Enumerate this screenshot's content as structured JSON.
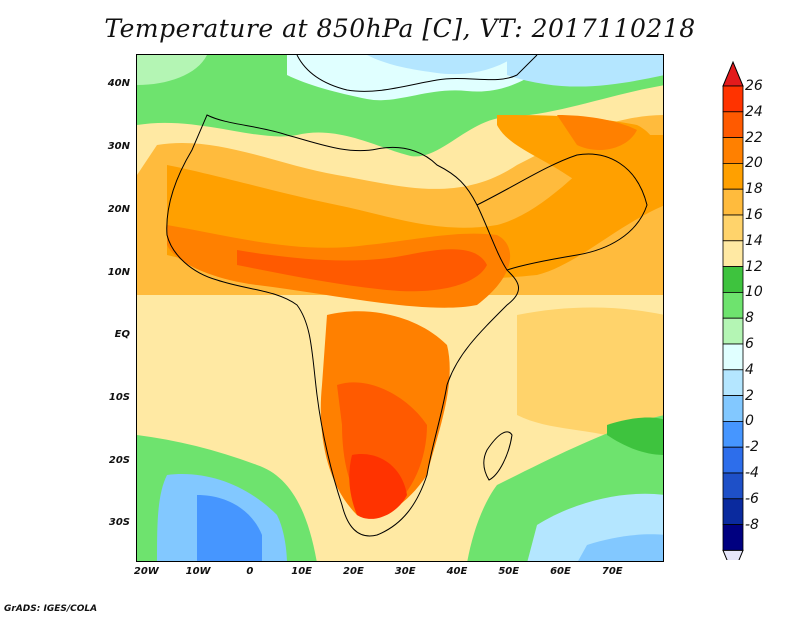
{
  "title": "Temperature at 850hPa [C], VT: 2017110218",
  "credit": "GrADS: IGES/COLA",
  "map": {
    "lon_range": [
      -22,
      80
    ],
    "lat_range": [
      -36,
      45
    ],
    "lat_ticks": [
      {
        "value": 40,
        "label": "40N"
      },
      {
        "value": 30,
        "label": "30N"
      },
      {
        "value": 20,
        "label": "20N"
      },
      {
        "value": 10,
        "label": "10N"
      },
      {
        "value": 0,
        "label": "EQ"
      },
      {
        "value": -10,
        "label": "10S"
      },
      {
        "value": -20,
        "label": "20S"
      },
      {
        "value": -30,
        "label": "30S"
      }
    ],
    "lon_ticks": [
      {
        "value": -20,
        "label": "20W"
      },
      {
        "value": -10,
        "label": "10W"
      },
      {
        "value": 0,
        "label": "0"
      },
      {
        "value": 10,
        "label": "10E"
      },
      {
        "value": 20,
        "label": "20E"
      },
      {
        "value": 30,
        "label": "30E"
      },
      {
        "value": 40,
        "label": "40E"
      },
      {
        "value": 50,
        "label": "50E"
      },
      {
        "value": 60,
        "label": "60E"
      },
      {
        "value": 70,
        "label": "70E"
      }
    ]
  },
  "colorbar": {
    "labels": [
      "26",
      "24",
      "22",
      "20",
      "18",
      "16",
      "14",
      "12",
      "10",
      "8",
      "6",
      "4",
      "2",
      "0",
      "-2",
      "-4",
      "-6",
      "-8"
    ],
    "colors": [
      "#ff3300",
      "#ff5a00",
      "#ff8000",
      "#ffa000",
      "#ffbb3d",
      "#ffd36b",
      "#ffe9a3",
      "#3ec33e",
      "#6ee36e",
      "#b4f5b4",
      "#e0ffff",
      "#b4e6ff",
      "#82c8ff",
      "#4696ff",
      "#2d6eeb",
      "#1e50c8",
      "#0a2a9e",
      "#000080"
    ],
    "top_arrow_color": "#e31a1c",
    "bottom_arrow_color": "#e6e6fa"
  }
}
